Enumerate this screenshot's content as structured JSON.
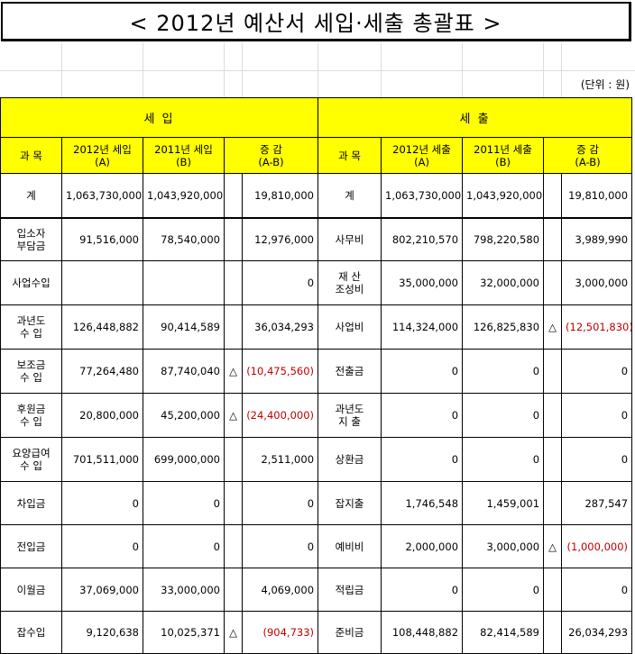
{
  "title": "< 2012년 예산서 세입·세출 총괄표 >",
  "unit": "(단위 : 원)",
  "revenue_header": "세          입",
  "expense_header": "세          출",
  "columns": {
    "subject": "과 목",
    "y2012_rev": "2012년 세입\n(A)",
    "y2011_rev": "2011년 세입\n(B)",
    "diff": "증  감\n(A-B)",
    "y2012_exp": "2012년 세출\n(A)",
    "y2011_exp": "2011년 세출\n(B)"
  },
  "rows": [
    {
      "rev_name": "계",
      "rev_2012": "1,063,730,000",
      "rev_2011": "1,043,920,000",
      "rev_tri": "",
      "rev_diff": "19,810,000",
      "rev_neg": false,
      "exp_name": "계",
      "exp_2012": "1,063,730,000",
      "exp_2011": "1,043,920,000",
      "exp_tri": "",
      "exp_diff": "19,810,000",
      "exp_neg": false
    },
    {
      "rev_name": "입소자\n부담금",
      "rev_2012": "91,516,000",
      "rev_2011": "78,540,000",
      "rev_tri": "",
      "rev_diff": "12,976,000",
      "rev_neg": false,
      "exp_name": "사무비",
      "exp_2012": "802,210,570",
      "exp_2011": "798,220,580",
      "exp_tri": "",
      "exp_diff": "3,989,990",
      "exp_neg": false
    },
    {
      "rev_name": "사업수입",
      "rev_2012": "",
      "rev_2011": "",
      "rev_tri": "",
      "rev_diff": "0",
      "rev_neg": false,
      "exp_name": "재  산\n조성비",
      "exp_2012": "35,000,000",
      "exp_2011": "32,000,000",
      "exp_tri": "",
      "exp_diff": "3,000,000",
      "exp_neg": false
    },
    {
      "rev_name": "과년도\n수  입",
      "rev_2012": "126,448,882",
      "rev_2011": "90,414,589",
      "rev_tri": "",
      "rev_diff": "36,034,293",
      "rev_neg": false,
      "exp_name": "사업비",
      "exp_2012": "114,324,000",
      "exp_2011": "126,825,830",
      "exp_tri": "△",
      "exp_diff": "(12,501,830)",
      "exp_neg": true
    },
    {
      "rev_name": "보조금\n수  입",
      "rev_2012": "77,264,480",
      "rev_2011": "87,740,040",
      "rev_tri": "△",
      "rev_diff": "(10,475,560)",
      "rev_neg": true,
      "exp_name": "전출금",
      "exp_2012": "0",
      "exp_2011": "0",
      "exp_tri": "",
      "exp_diff": "0",
      "exp_neg": false
    },
    {
      "rev_name": "후원금\n수  입",
      "rev_2012": "20,800,000",
      "rev_2011": "45,200,000",
      "rev_tri": "△",
      "rev_diff": "(24,400,000)",
      "rev_neg": true,
      "exp_name": "과년도\n지  출",
      "exp_2012": "0",
      "exp_2011": "0",
      "exp_tri": "",
      "exp_diff": "0",
      "exp_neg": false
    },
    {
      "rev_name": "요양급여\n수  입",
      "rev_2012": "701,511,000",
      "rev_2011": "699,000,000",
      "rev_tri": "",
      "rev_diff": "2,511,000",
      "rev_neg": false,
      "exp_name": "상환금",
      "exp_2012": "0",
      "exp_2011": "0",
      "exp_tri": "",
      "exp_diff": "0",
      "exp_neg": false
    },
    {
      "rev_name": "차입금",
      "rev_2012": "0",
      "rev_2011": "0",
      "rev_tri": "",
      "rev_diff": "0",
      "rev_neg": false,
      "exp_name": "잡지출",
      "exp_2012": "1,746,548",
      "exp_2011": "1,459,001",
      "exp_tri": "",
      "exp_diff": "287,547",
      "exp_neg": false
    },
    {
      "rev_name": "전입금",
      "rev_2012": "0",
      "rev_2011": "0",
      "rev_tri": "",
      "rev_diff": "0",
      "rev_neg": false,
      "exp_name": "예비비",
      "exp_2012": "2,000,000",
      "exp_2011": "3,000,000",
      "exp_tri": "△",
      "exp_diff": "(1,000,000)",
      "exp_neg": true
    },
    {
      "rev_name": "이월금",
      "rev_2012": "37,069,000",
      "rev_2011": "33,000,000",
      "rev_tri": "",
      "rev_diff": "4,069,000",
      "rev_neg": false,
      "exp_name": "적립금",
      "exp_2012": "0",
      "exp_2011": "0",
      "exp_tri": "",
      "exp_diff": "0",
      "exp_neg": false
    },
    {
      "rev_name": "잡수입",
      "rev_2012": "9,120,638",
      "rev_2011": "10,025,371",
      "rev_tri": "△",
      "rev_diff": "(904,733)",
      "rev_neg": true,
      "exp_name": "준비금",
      "exp_2012": "108,448,882",
      "exp_2011": "82,414,589",
      "exp_tri": "",
      "exp_diff": "26,034,293",
      "exp_neg": false
    }
  ],
  "colors": {
    "header_bg": "#ffff00",
    "negative": "#c00000"
  }
}
